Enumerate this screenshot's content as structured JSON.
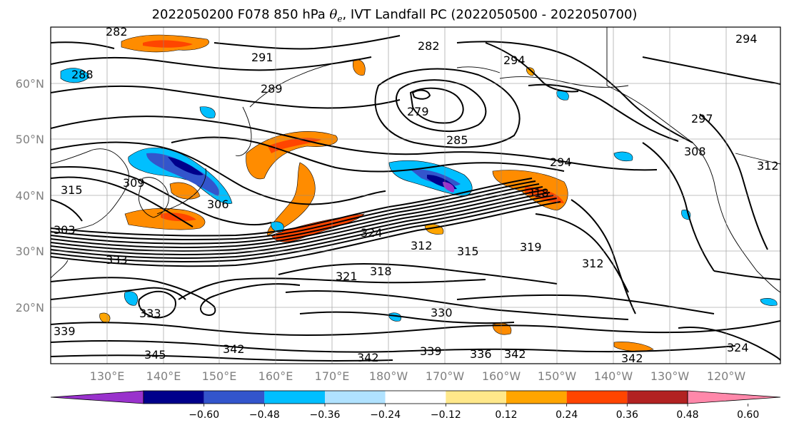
{
  "title_prefix": "2022050200 F078 850 hPa ",
  "title_symbol": "θ",
  "title_symbol_sub": "e",
  "title_suffix": ", IVT Landfall PC (2022050500 - 2022050700)",
  "lat_labels": [
    "60°N",
    "50°N",
    "40°N",
    "30°N",
    "20°N"
  ],
  "lon_labels": [
    "130°E",
    "140°E",
    "150°E",
    "160°E",
    "170°E",
    "180°W",
    "170°W",
    "160°W",
    "150°W",
    "140°W",
    "130°W",
    "120°W"
  ],
  "contour_labels": [
    "282",
    "288",
    "291",
    "282",
    "294",
    "294",
    "289",
    "279",
    "285",
    "297",
    "308",
    "312",
    "294",
    "318",
    "315",
    "309",
    "306",
    "303",
    "324",
    "312",
    "315",
    "319",
    "312",
    "333",
    "321",
    "318",
    "330",
    "333",
    "339",
    "345",
    "342",
    "342",
    "339",
    "336",
    "342",
    "342",
    "324"
  ],
  "colorbar": {
    "colors": [
      "#9932cc",
      "#00008b",
      "#3355cc",
      "#00bfff",
      "#b0e2ff",
      "#ffffff",
      "#ffe88a",
      "#ffa500",
      "#ff4500",
      "#b22222",
      "#ff88aa"
    ],
    "labels": [
      "−0.60",
      "−0.48",
      "−0.36",
      "−0.24",
      "−0.12",
      "0.12",
      "0.24",
      "0.36",
      "0.48",
      "0.60"
    ]
  }
}
